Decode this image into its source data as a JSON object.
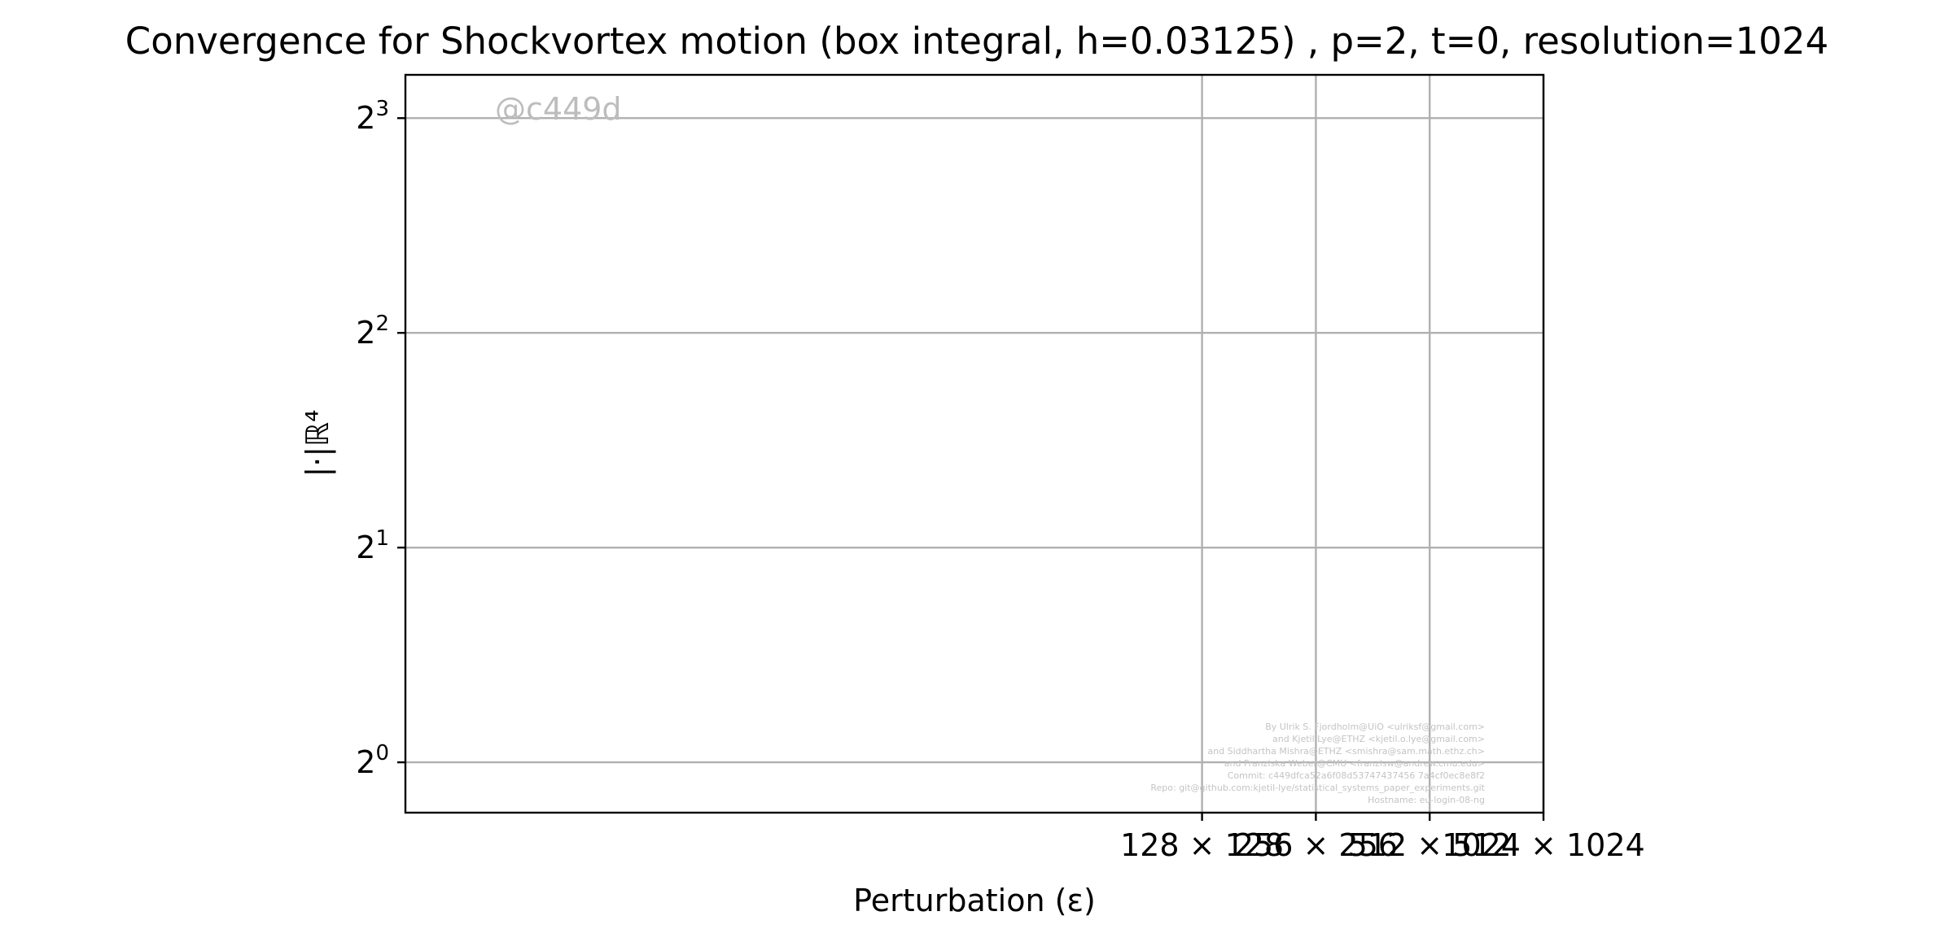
{
  "chart_data": {
    "type": "line",
    "title": "Convergence for Shockvortex motion (box integral, h=0.03125) , p=2, t=0, resolution=1024",
    "xlabel": "Perturbation (ε)",
    "ylabel": "|·|ℝ⁴",
    "x_scale": "log2",
    "y_scale": "log2",
    "xlim": [
      1,
      1024
    ],
    "ylim": [
      0.85,
      9.2
    ],
    "x_ticks": [
      {
        "value": 128,
        "label": "128 × 128"
      },
      {
        "value": 256,
        "label": "256 × 256"
      },
      {
        "value": 512,
        "label": "512 × 512"
      },
      {
        "value": 1024,
        "label": "1024 × 1024"
      }
    ],
    "y_ticks": [
      {
        "value": 1,
        "base": "2",
        "exp": "0"
      },
      {
        "value": 2,
        "base": "2",
        "exp": "1"
      },
      {
        "value": 4,
        "base": "2",
        "exp": "2"
      },
      {
        "value": 8,
        "base": "2",
        "exp": "3"
      }
    ],
    "grid": true,
    "series": [],
    "watermark": "@c449d",
    "credits": [
      "By Ulrik S. Fjordholm@UiO <ulriksf@gmail.com>",
      "and Kjetil Lye@ETHZ <kjetil.o.lye@gmail.com>",
      "and Siddhartha Mishra@ETHZ <smishra@sam.math.ethz.ch>",
      "and Franziska Weber@CMU <franzisw@andrew.cmu.edu>",
      "Commit: c449dfca52a6f08d53747437456 7a4cf0ec8e8f2",
      "Repo: git@github.com:kjetil-lye/statistical_systems_paper_experiments.git",
      "Hostname: eu-login-08-ng"
    ]
  }
}
